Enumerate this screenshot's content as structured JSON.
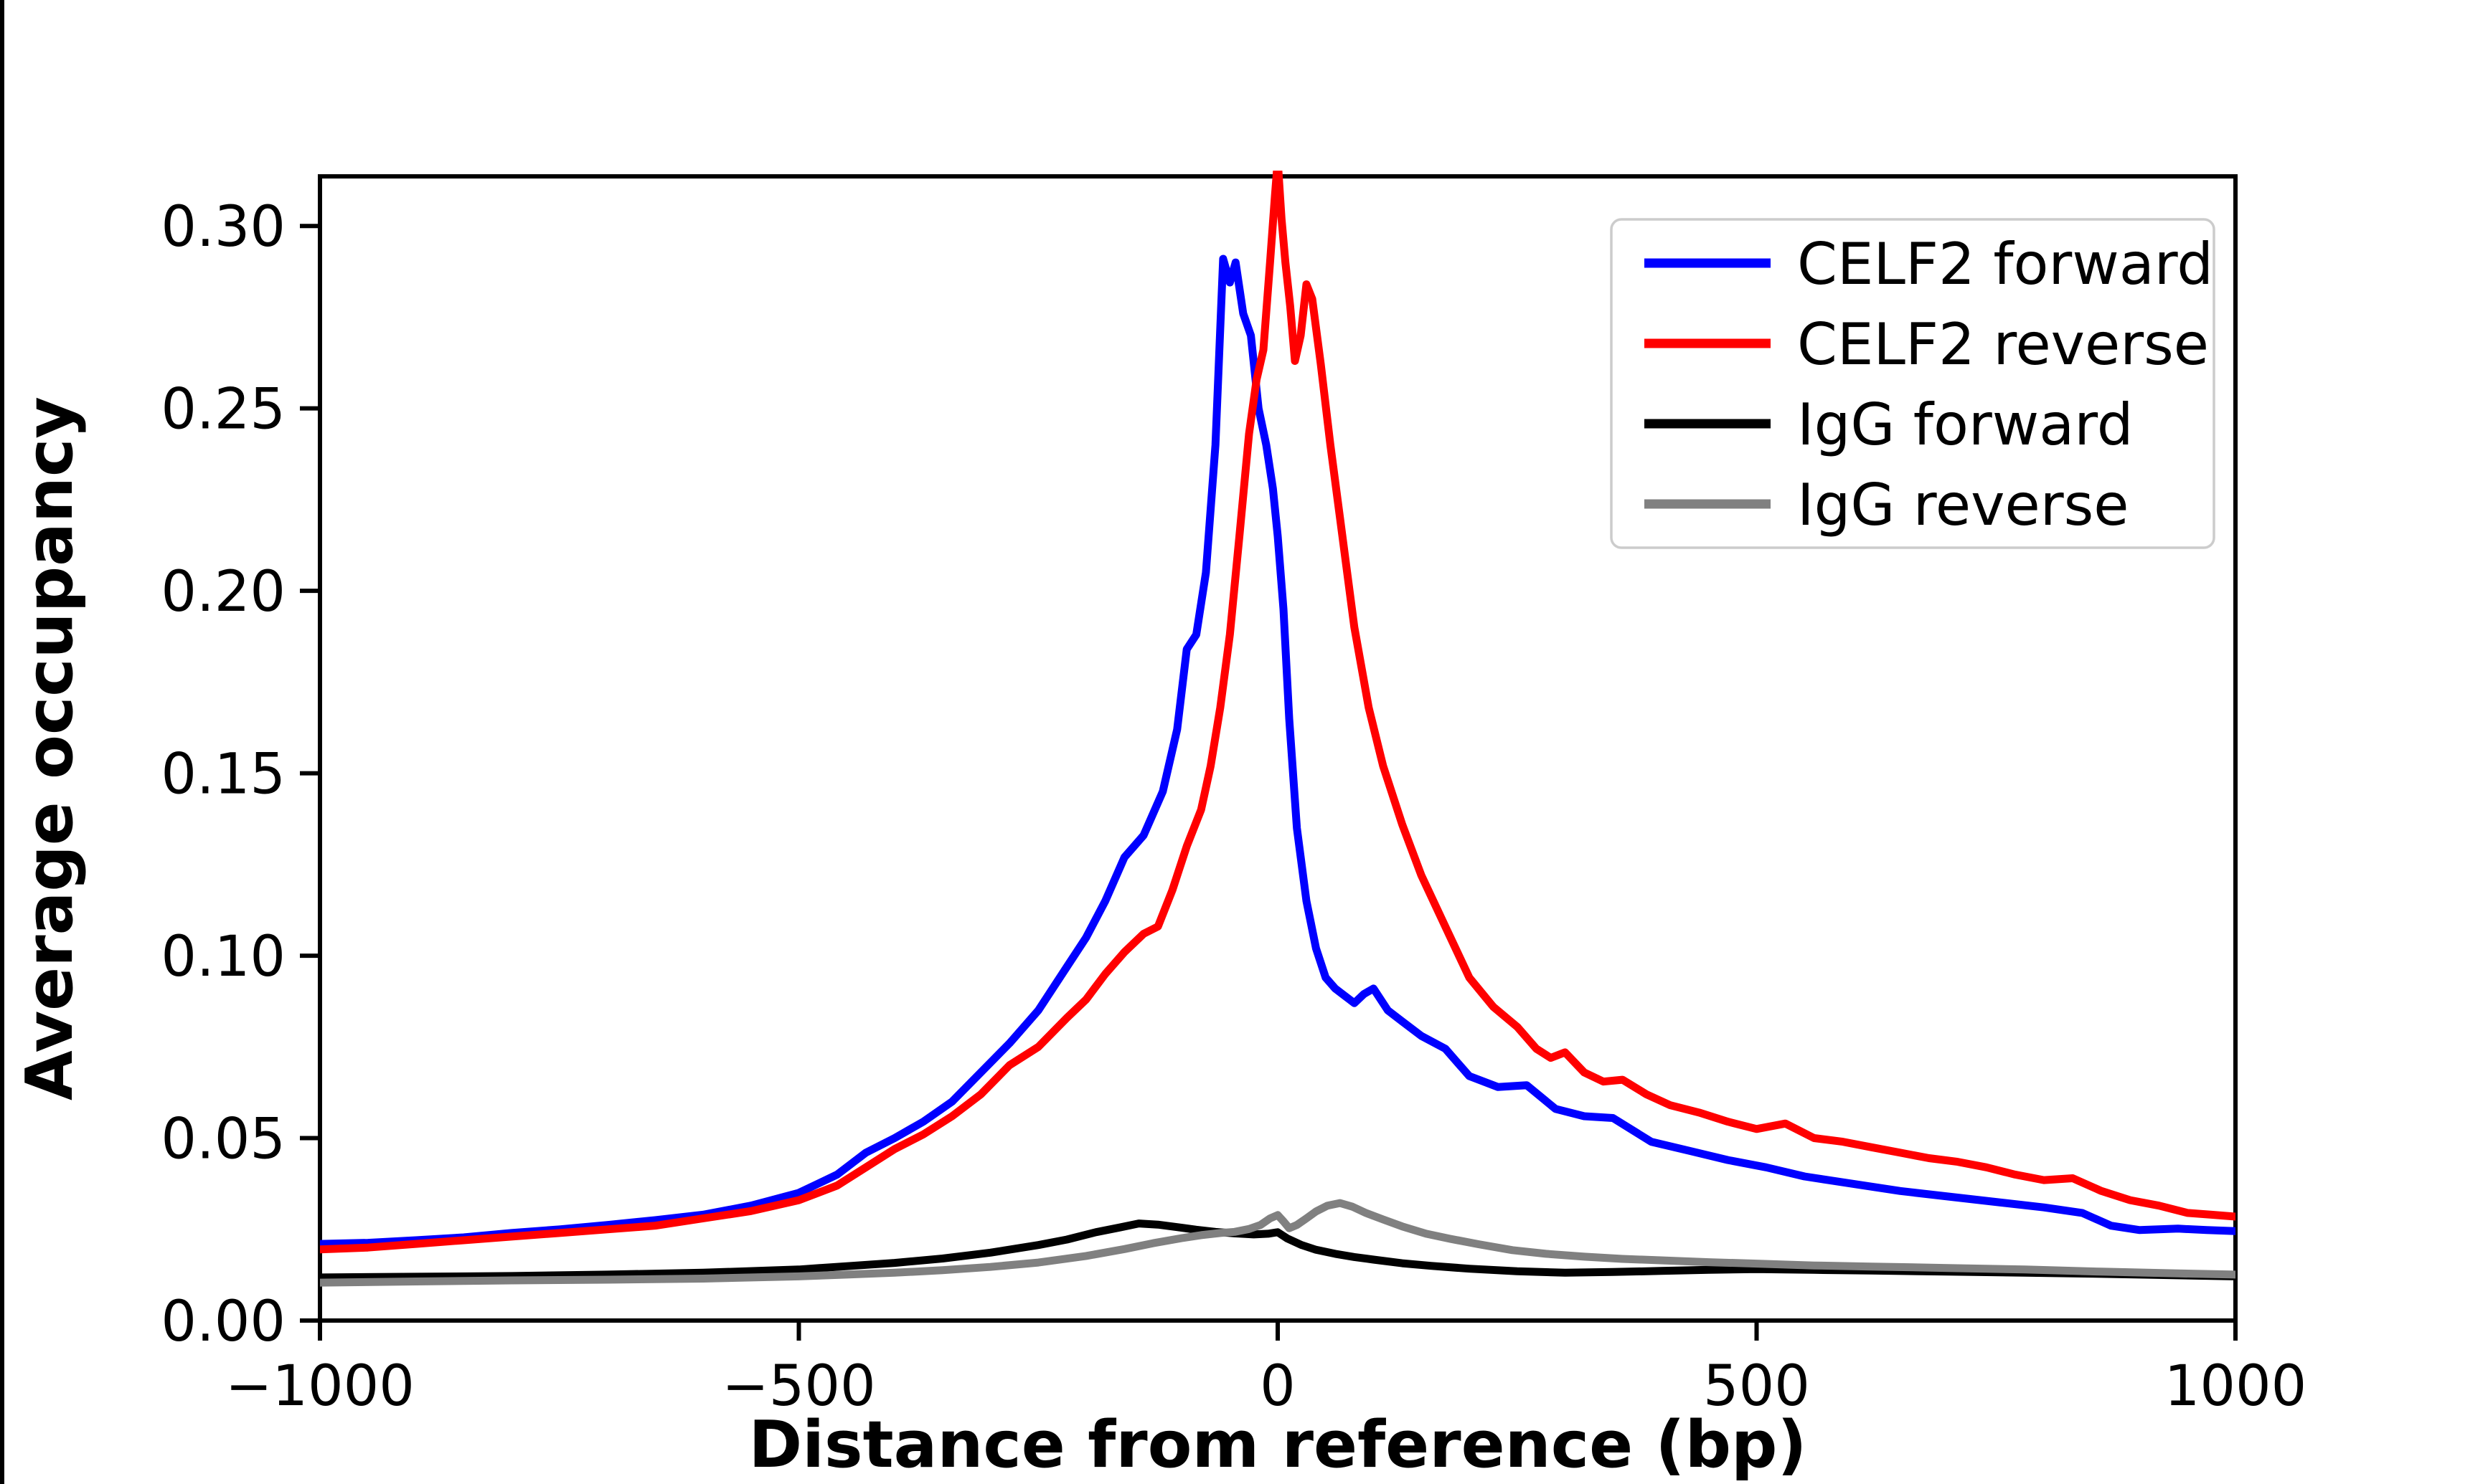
{
  "figure": {
    "background_color": "#ffffff",
    "left_edge_bar_color": "#000000"
  },
  "chart_data": {
    "type": "line",
    "title": "",
    "xlabel": "Distance from reference (bp)",
    "ylabel": "Average occupancy",
    "xlim": [
      -1000,
      1000
    ],
    "ylim": [
      0,
      0.3136
    ],
    "grid": false,
    "legend_position": "upper right",
    "xticks": [
      {
        "value": -1000,
        "label": "−1000"
      },
      {
        "value": -500,
        "label": "−500"
      },
      {
        "value": 0,
        "label": "0"
      },
      {
        "value": 500,
        "label": "500"
      },
      {
        "value": 1000,
        "label": "1000"
      }
    ],
    "yticks": [
      {
        "value": 0.0,
        "label": "0.00"
      },
      {
        "value": 0.05,
        "label": "0.05"
      },
      {
        "value": 0.1,
        "label": "0.10"
      },
      {
        "value": 0.15,
        "label": "0.15"
      },
      {
        "value": 0.2,
        "label": "0.20"
      },
      {
        "value": 0.25,
        "label": "0.25"
      },
      {
        "value": 0.3,
        "label": "0.30"
      }
    ],
    "legend": {
      "entries": [
        {
          "label": "CELF2 forward",
          "color": "#0000ff"
        },
        {
          "label": "CELF2 reverse",
          "color": "#ff0000"
        },
        {
          "label": "IgG forward",
          "color": "#000000"
        },
        {
          "label": "IgG reverse",
          "color": "#808080"
        }
      ]
    },
    "series": [
      {
        "name": "CELF2 forward",
        "color": "#0000ff",
        "x": [
          -1000,
          -950,
          -900,
          -850,
          -800,
          -750,
          -700,
          -650,
          -600,
          -550,
          -500,
          -460,
          -430,
          -400,
          -370,
          -340,
          -310,
          -280,
          -250,
          -220,
          -200,
          -180,
          -160,
          -140,
          -120,
          -105,
          -95,
          -85,
          -75,
          -65,
          -57,
          -50,
          -44,
          -36,
          -28,
          -20,
          -12,
          -5,
          0,
          6,
          12,
          20,
          30,
          40,
          50,
          60,
          70,
          80,
          90,
          100,
          115,
          130,
          150,
          175,
          200,
          230,
          260,
          290,
          320,
          350,
          390,
          430,
          470,
          510,
          550,
          600,
          650,
          700,
          750,
          800,
          840,
          870,
          900,
          940,
          970,
          1000
        ],
        "values": [
          0.021,
          0.0213,
          0.022,
          0.0228,
          0.024,
          0.025,
          0.0262,
          0.0275,
          0.029,
          0.0315,
          0.035,
          0.04,
          0.046,
          0.05,
          0.0545,
          0.06,
          0.068,
          0.076,
          0.085,
          0.097,
          0.105,
          0.115,
          0.127,
          0.133,
          0.145,
          0.162,
          0.184,
          0.188,
          0.205,
          0.24,
          0.291,
          0.2845,
          0.29,
          0.276,
          0.27,
          0.25,
          0.24,
          0.228,
          0.215,
          0.195,
          0.165,
          0.135,
          0.115,
          0.102,
          0.094,
          0.091,
          0.089,
          0.087,
          0.0895,
          0.091,
          0.085,
          0.082,
          0.078,
          0.0745,
          0.067,
          0.064,
          0.0645,
          0.058,
          0.056,
          0.0555,
          0.049,
          0.0465,
          0.044,
          0.042,
          0.0395,
          0.0375,
          0.0355,
          0.034,
          0.0325,
          0.031,
          0.0295,
          0.026,
          0.0248,
          0.0252,
          0.0248,
          0.0245
        ]
      },
      {
        "name": "CELF2 reverse",
        "color": "#ff0000",
        "x": [
          -1000,
          -950,
          -900,
          -850,
          -800,
          -750,
          -700,
          -650,
          -600,
          -550,
          -500,
          -460,
          -430,
          -400,
          -370,
          -340,
          -310,
          -280,
          -250,
          -220,
          -200,
          -180,
          -160,
          -140,
          -125,
          -110,
          -95,
          -80,
          -70,
          -60,
          -50,
          -40,
          -30,
          -22,
          -15,
          -8,
          -3,
          0,
          4,
          8,
          13,
          18,
          24,
          30,
          36,
          45,
          55,
          65,
          80,
          95,
          110,
          130,
          150,
          175,
          200,
          225,
          250,
          270,
          285,
          300,
          320,
          340,
          360,
          385,
          410,
          440,
          470,
          500,
          530,
          560,
          590,
          620,
          650,
          680,
          710,
          740,
          770,
          800,
          830,
          860,
          890,
          920,
          950,
          975,
          1000
        ],
        "values": [
          0.0195,
          0.02,
          0.021,
          0.022,
          0.023,
          0.024,
          0.025,
          0.026,
          0.028,
          0.03,
          0.033,
          0.037,
          0.042,
          0.047,
          0.051,
          0.056,
          0.062,
          0.07,
          0.075,
          0.083,
          0.088,
          0.095,
          0.101,
          0.106,
          0.108,
          0.118,
          0.13,
          0.14,
          0.152,
          0.168,
          0.188,
          0.215,
          0.243,
          0.258,
          0.266,
          0.29,
          0.308,
          0.318,
          0.302,
          0.29,
          0.278,
          0.263,
          0.27,
          0.284,
          0.28,
          0.262,
          0.24,
          0.22,
          0.19,
          0.168,
          0.152,
          0.136,
          0.122,
          0.108,
          0.094,
          0.086,
          0.0805,
          0.0745,
          0.072,
          0.0735,
          0.068,
          0.0655,
          0.066,
          0.062,
          0.059,
          0.057,
          0.0545,
          0.0525,
          0.054,
          0.05,
          0.049,
          0.0475,
          0.046,
          0.0445,
          0.0435,
          0.042,
          0.04,
          0.0385,
          0.039,
          0.0355,
          0.033,
          0.0315,
          0.0295,
          0.029,
          0.0285
        ]
      },
      {
        "name": "IgG forward",
        "color": "#000000",
        "x": [
          -1000,
          -900,
          -800,
          -700,
          -600,
          -500,
          -450,
          -400,
          -350,
          -300,
          -250,
          -220,
          -190,
          -165,
          -145,
          -125,
          -105,
          -85,
          -65,
          -45,
          -25,
          -10,
          0,
          10,
          25,
          40,
          60,
          80,
          100,
          130,
          160,
          200,
          250,
          300,
          350,
          400,
          450,
          500,
          560,
          620,
          700,
          780,
          860,
          940,
          1000
        ],
        "values": [
          0.0118,
          0.012,
          0.0122,
          0.0126,
          0.0131,
          0.014,
          0.0149,
          0.0158,
          0.017,
          0.0186,
          0.0207,
          0.0222,
          0.0242,
          0.0255,
          0.0266,
          0.0263,
          0.0256,
          0.0249,
          0.0243,
          0.0239,
          0.0236,
          0.0238,
          0.0242,
          0.0225,
          0.0207,
          0.0194,
          0.0183,
          0.0174,
          0.0167,
          0.0157,
          0.015,
          0.0142,
          0.0135,
          0.0131,
          0.0133,
          0.0136,
          0.0139,
          0.0141,
          0.0139,
          0.0137,
          0.0134,
          0.0131,
          0.0128,
          0.0124,
          0.0121
        ]
      },
      {
        "name": "IgG reverse",
        "color": "#808080",
        "x": [
          -1000,
          -900,
          -800,
          -700,
          -600,
          -500,
          -450,
          -400,
          -350,
          -300,
          -250,
          -200,
          -160,
          -130,
          -100,
          -80,
          -60,
          -45,
          -30,
          -18,
          -8,
          0,
          6,
          12,
          20,
          30,
          40,
          52,
          65,
          78,
          92,
          110,
          130,
          155,
          180,
          210,
          245,
          280,
          320,
          360,
          400,
          450,
          500,
          560,
          620,
          700,
          780,
          860,
          940,
          1000
        ],
        "values": [
          0.0104,
          0.0107,
          0.011,
          0.0112,
          0.0115,
          0.0121,
          0.0126,
          0.0131,
          0.0138,
          0.0147,
          0.0159,
          0.0177,
          0.0196,
          0.0212,
          0.0226,
          0.0234,
          0.024,
          0.0243,
          0.0251,
          0.0262,
          0.028,
          0.0289,
          0.0272,
          0.0253,
          0.0262,
          0.028,
          0.0299,
          0.0315,
          0.0322,
          0.0312,
          0.0295,
          0.0277,
          0.0258,
          0.0238,
          0.0224,
          0.0209,
          0.0193,
          0.0183,
          0.0175,
          0.0169,
          0.0165,
          0.016,
          0.0156,
          0.0151,
          0.0148,
          0.0144,
          0.014,
          0.0134,
          0.0129,
          0.0126
        ]
      }
    ]
  }
}
